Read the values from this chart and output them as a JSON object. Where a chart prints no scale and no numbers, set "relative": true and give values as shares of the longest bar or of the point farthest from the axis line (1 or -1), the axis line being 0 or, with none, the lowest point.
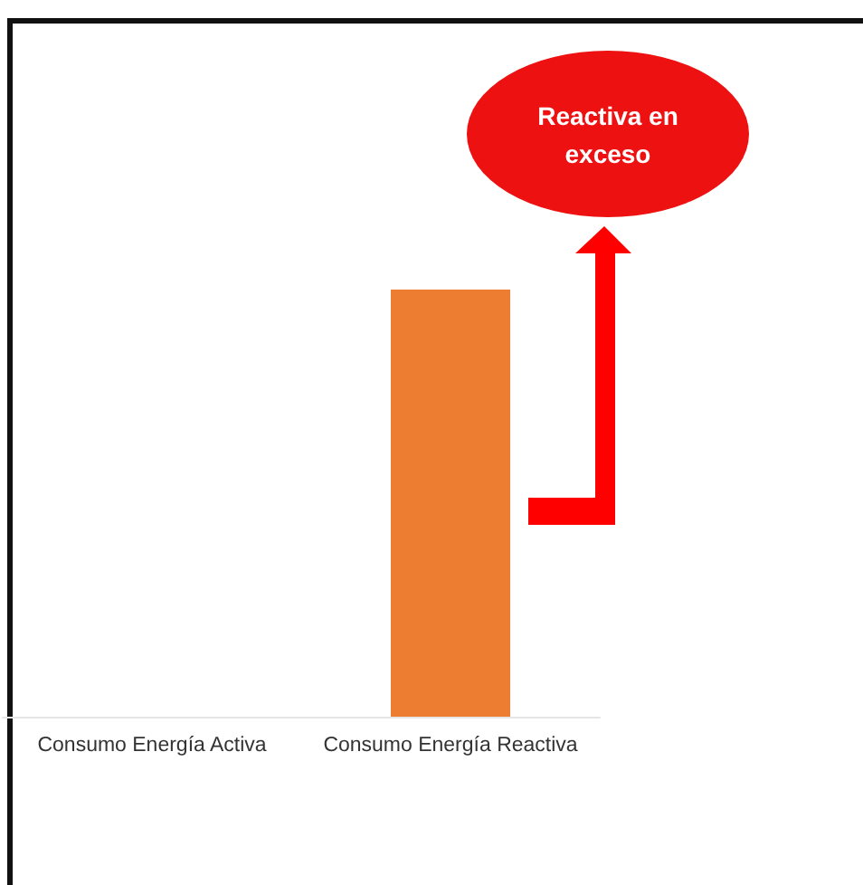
{
  "chart_data": {
    "type": "bar",
    "categories": [
      "Consumo Energía Activa",
      "Consumo Energía Reactiva"
    ],
    "values": [
      null,
      1
    ],
    "color": "#ed7d31",
    "relative": true,
    "annotations": [
      "Reactiva en exceso"
    ]
  }
}
